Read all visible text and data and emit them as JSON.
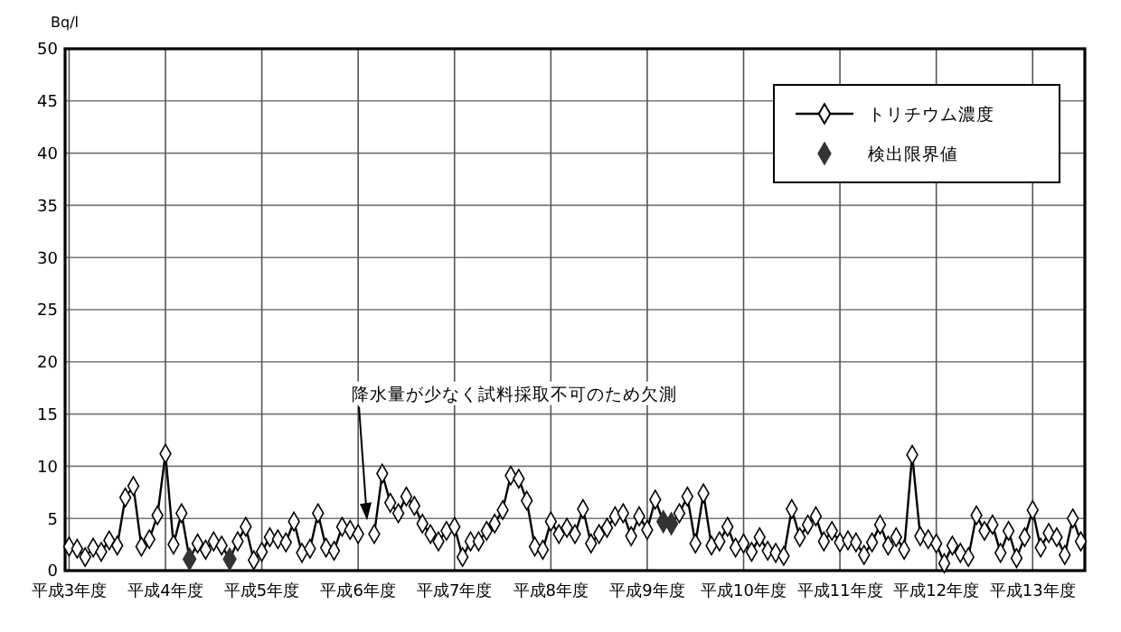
{
  "chart_data": {
    "type": "line",
    "ylabel": "Bq/l",
    "ylim": [
      0,
      50
    ],
    "categories": [
      "平成3年度",
      null,
      null,
      null,
      null,
      null,
      null,
      null,
      null,
      null,
      null,
      null,
      "平成4年度",
      null,
      null,
      null,
      null,
      null,
      null,
      null,
      null,
      null,
      null,
      null,
      "平成5年度",
      null,
      null,
      null,
      null,
      null,
      null,
      null,
      null,
      null,
      null,
      null,
      "平成6年度",
      null,
      null,
      null,
      null,
      null,
      null,
      null,
      null,
      null,
      null,
      null,
      "平成7年度",
      null,
      null,
      null,
      null,
      null,
      null,
      null,
      null,
      null,
      null,
      null,
      "平成8年度",
      null,
      null,
      null,
      null,
      null,
      null,
      null,
      null,
      null,
      null,
      null,
      "平成9年度",
      null,
      null,
      null,
      null,
      null,
      null,
      null,
      null,
      null,
      null,
      null,
      "平成10年度",
      null,
      null,
      null,
      null,
      null,
      null,
      null,
      null,
      null,
      null,
      null,
      "平成11年度",
      null,
      null,
      null,
      null,
      null,
      null,
      null,
      null,
      null,
      null,
      null,
      "平成12年度",
      null,
      null,
      null,
      null,
      null,
      null,
      null,
      null,
      null,
      null,
      null,
      "平成13年度",
      null,
      null,
      null,
      null,
      null,
      null
    ],
    "yticks": [
      0,
      5,
      10,
      15,
      20,
      25,
      30,
      35,
      40,
      45,
      50
    ],
    "grid": true,
    "legend": "top right",
    "marker": "diamond",
    "annotations": [
      {
        "text": "降水量が少なく試料採取不可のため欠測"
      }
    ],
    "series": [
      {
        "name": "トリチウム濃度",
        "color": "#000000",
        "values": [
          2.3,
          2.1,
          1.3,
          2.2,
          1.8,
          2.9,
          2.4,
          7.0,
          8.1,
          2.3,
          3.0,
          5.3,
          11.2,
          2.5,
          5.5,
          1.1,
          2.6,
          2.0,
          2.8,
          2.4,
          1.1,
          2.8,
          4.2,
          1.0,
          1.8,
          3.2,
          3.0,
          2.7,
          4.7,
          1.7,
          2.1,
          5.5,
          2.2,
          1.9,
          4.2,
          3.9,
          3.5,
          null,
          3.5,
          9.3,
          6.5,
          5.5,
          7.1,
          6.2,
          4.5,
          3.5,
          2.8,
          3.8,
          4.2,
          1.3,
          2.8,
          2.8,
          3.8,
          4.5,
          5.8,
          9.1,
          8.8,
          6.7,
          2.3,
          2.0,
          4.7,
          3.5,
          4.1,
          3.5,
          5.9,
          2.6,
          3.5,
          4.1,
          5.2,
          5.5,
          3.3,
          5.2,
          3.9,
          6.8,
          4.7,
          4.5,
          5.5,
          7.1,
          2.6,
          7.4,
          2.4,
          2.8,
          4.2,
          2.2,
          2.6,
          1.8,
          3.2,
          1.9,
          1.7,
          1.4,
          5.9,
          3.2,
          4.4,
          5.2,
          2.8,
          3.8,
          2.7,
          2.9,
          2.7,
          1.5,
          2.7,
          4.4,
          2.4,
          3.2,
          2.0,
          11.1,
          3.3,
          3.0,
          2.6,
          0.7,
          2.4,
          1.7,
          1.3,
          5.3,
          3.8,
          4.4,
          1.7,
          3.8,
          1.2,
          3.2,
          5.8,
          2.2,
          3.6,
          3.2,
          1.5,
          5.0,
          2.8
        ]
      },
      {
        "name": "検出限界値",
        "type": "scatter",
        "color": "#333333",
        "values": [
          null,
          null,
          null,
          null,
          null,
          null,
          null,
          null,
          null,
          null,
          null,
          null,
          null,
          null,
          null,
          1.1,
          null,
          null,
          null,
          null,
          1.1,
          null,
          null,
          null,
          null,
          null,
          null,
          null,
          null,
          null,
          null,
          null,
          null,
          null,
          null,
          null,
          null,
          null,
          null,
          null,
          null,
          null,
          null,
          null,
          null,
          null,
          null,
          null,
          null,
          null,
          null,
          null,
          null,
          null,
          null,
          null,
          null,
          null,
          null,
          null,
          null,
          null,
          null,
          null,
          null,
          null,
          null,
          null,
          null,
          null,
          null,
          null,
          null,
          null,
          4.7,
          4.5,
          null,
          null,
          null,
          null,
          null,
          null,
          null,
          null,
          null,
          null,
          null,
          null,
          null,
          null,
          null,
          null,
          null,
          null,
          null,
          null,
          null,
          null,
          null,
          null,
          null,
          null,
          null,
          null,
          null,
          null,
          null,
          null,
          null,
          null,
          null,
          null,
          null,
          null,
          null,
          null,
          null,
          null,
          null,
          null,
          null,
          null,
          null,
          null,
          null,
          null,
          null
        ]
      }
    ]
  }
}
